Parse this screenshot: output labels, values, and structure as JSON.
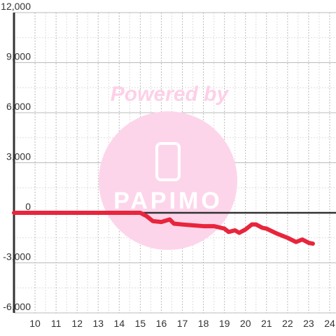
{
  "chart_data": {
    "type": "line",
    "watermark": "Powered by",
    "logo": "PAPIMO",
    "x": [
      9,
      15,
      15.3,
      15.6,
      16,
      16.4,
      16.6,
      17,
      17.5,
      18,
      18.5,
      19,
      19.2,
      19.5,
      19.7,
      20,
      20.3,
      20.5,
      20.8,
      21,
      21.5,
      22,
      22.4,
      22.7,
      23,
      23.2
    ],
    "series": [
      {
        "color": "#e8253c",
        "values": [
          0,
          0,
          -200,
          -500,
          -550,
          -400,
          -650,
          -700,
          -750,
          -800,
          -800,
          -950,
          -1150,
          -1050,
          -1200,
          -1000,
          -700,
          -700,
          -900,
          -950,
          -1250,
          -1500,
          -1750,
          -1600,
          -1800,
          -1850
        ]
      }
    ],
    "xlim": [
      9,
      24.3
    ],
    "ylim": [
      -6000,
      12000
    ],
    "xticks": [
      10,
      11,
      12,
      13,
      14,
      15,
      16,
      17,
      18,
      19,
      20,
      21,
      22,
      23,
      24
    ],
    "xminorticks": [
      10.5,
      11.5,
      12.5,
      13.5,
      14.5,
      15.5,
      16.5,
      17.5,
      18.5,
      19.5,
      20.5,
      21.5,
      22.5,
      23.5
    ],
    "yticks": [
      {
        "value": -6000,
        "label": "-6,000"
      },
      {
        "value": -3000,
        "label": "-3,000"
      },
      0,
      {
        "value": 3000,
        "label": "3,000"
      },
      {
        "value": 6000,
        "label": "6,000"
      },
      {
        "value": 9000,
        "label": "9,000"
      },
      {
        "value": 12000,
        "label": "12,000"
      }
    ],
    "yminorticks": [
      -4500,
      -1500,
      1500,
      4500,
      7500,
      10500
    ],
    "grid": true
  }
}
